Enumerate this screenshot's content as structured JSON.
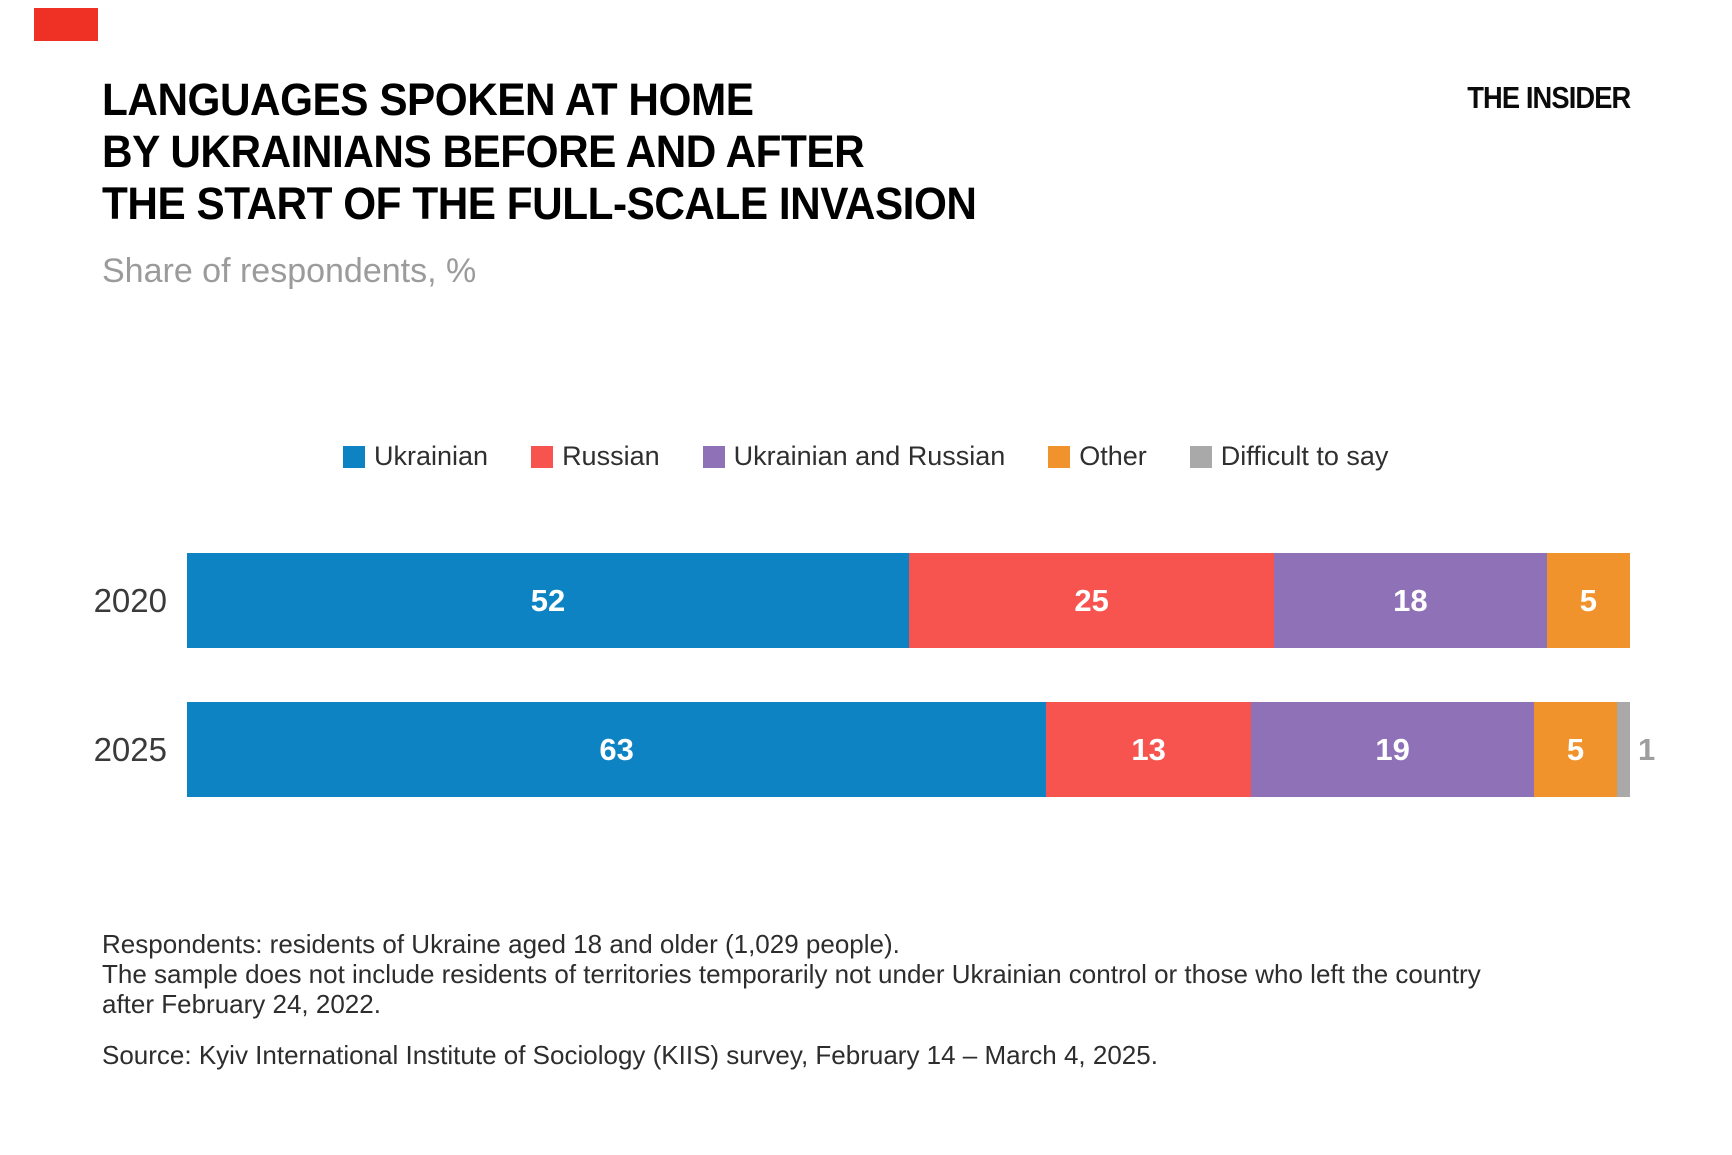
{
  "page": {
    "background": "#ffffff"
  },
  "brand": {
    "mark_color": "#ee3124",
    "logo_text": "THE INSIDER"
  },
  "header": {
    "title_lines": [
      "LANGUAGES SPOKEN AT HOME",
      "BY UKRAINIANS BEFORE AND AFTER",
      "THE START OF THE FULL-SCALE INVASION"
    ],
    "subtitle": "Share of respondents, %"
  },
  "chart_data": {
    "type": "bar",
    "stacked": true,
    "orientation": "horizontal",
    "unit": "percent of respondents",
    "categories": [
      "2020",
      "2025"
    ],
    "series": [
      {
        "name": "Ukrainian",
        "color": "#0d83c4",
        "values": [
          52,
          63
        ]
      },
      {
        "name": "Russian",
        "color": "#f7544f",
        "values": [
          25,
          13
        ]
      },
      {
        "name": "Ukrainian and Russian",
        "color": "#8f71b8",
        "values": [
          18,
          19
        ]
      },
      {
        "name": "Other",
        "color": "#f0932d",
        "values": [
          5,
          5
        ]
      },
      {
        "name": "Difficult to say",
        "color": "#a9a9a9",
        "values": [
          0,
          1
        ]
      }
    ],
    "legend_position": "top",
    "axis": "none",
    "value_label_style": "white bold inside segments; value 1 shown outside in gray",
    "inside_label_min_value": 2
  },
  "footnotes": [
    "Respondents: residents of Ukraine aged 18 and older (1,029 people).",
    "The sample does not include residents of territories temporarily not under Ukrainian control or those who left the country",
    "after February 24, 2022."
  ],
  "source": "Source: Kyiv International Institute of Sociology (KIIS) survey, February 14 – March 4, 2025."
}
